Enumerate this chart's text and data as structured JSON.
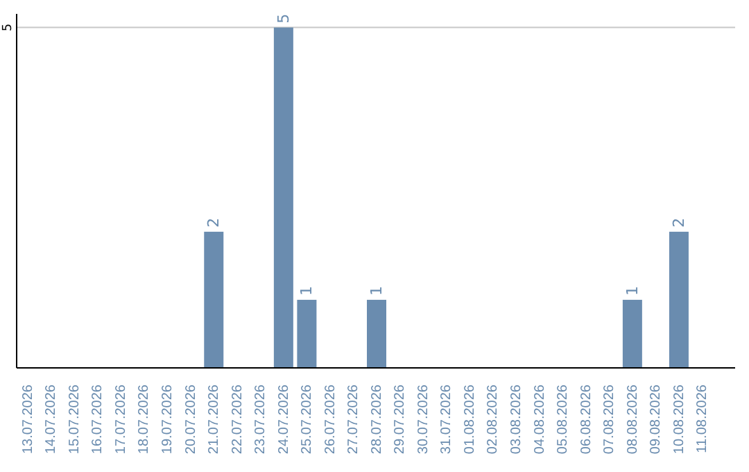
{
  "chart_data": {
    "type": "bar",
    "categories": [
      "13.07.2026",
      "14.07.2026",
      "15.07.2026",
      "16.07.2026",
      "17.07.2026",
      "18.07.2026",
      "19.07.2026",
      "20.07.2026",
      "21.07.2026",
      "22.07.2026",
      "23.07.2026",
      "24.07.2026",
      "25.07.2026",
      "26.07.2026",
      "27.07.2026",
      "28.07.2026",
      "29.07.2026",
      "30.07.2026",
      "31.07.2026",
      "01.08.2026",
      "02.08.2026",
      "03.08.2026",
      "04.08.2026",
      "05.08.2026",
      "06.08.2026",
      "07.08.2026",
      "08.08.2026",
      "09.08.2026",
      "10.08.2026",
      "11.08.2026"
    ],
    "values": [
      0,
      0,
      0,
      0,
      0,
      0,
      0,
      0,
      2,
      0,
      0,
      5,
      1,
      0,
      0,
      1,
      0,
      0,
      0,
      0,
      0,
      0,
      0,
      0,
      0,
      0,
      1,
      0,
      2,
      0
    ],
    "value_labels": [
      null,
      null,
      null,
      null,
      null,
      null,
      null,
      null,
      "2",
      null,
      null,
      "5",
      "1",
      null,
      null,
      "1",
      null,
      null,
      null,
      null,
      null,
      null,
      null,
      null,
      null,
      null,
      "1",
      null,
      "2",
      null
    ],
    "color": "#6a8caf",
    "ylim": [
      0,
      5.2
    ],
    "yticks": [
      5
    ],
    "grid": "y"
  }
}
